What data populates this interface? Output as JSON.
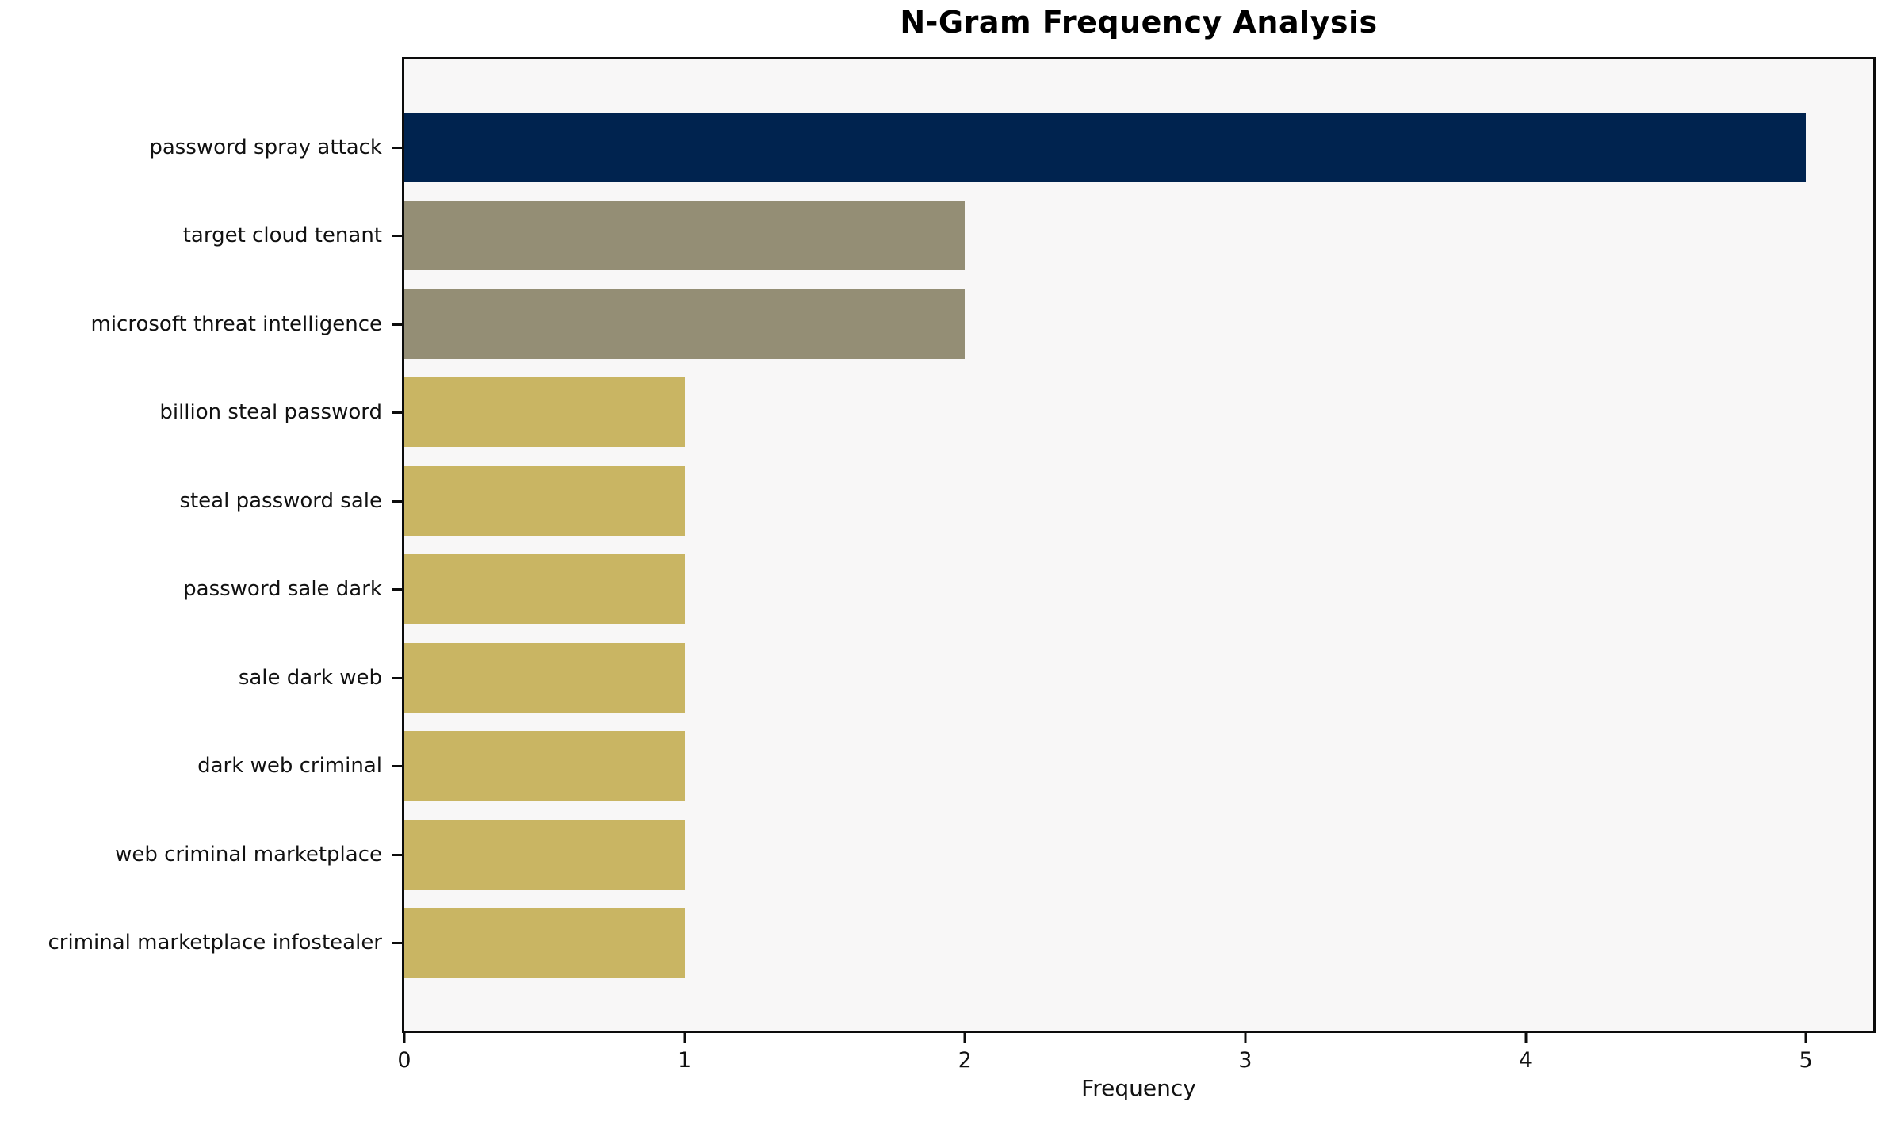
{
  "chart_data": {
    "type": "bar",
    "orientation": "horizontal",
    "title": "N-Gram Frequency Analysis",
    "xlabel": "Frequency",
    "ylabel": "",
    "categories": [
      "password spray attack",
      "target cloud tenant",
      "microsoft threat intelligence",
      "billion steal password",
      "steal password sale",
      "password sale dark",
      "sale dark web",
      "dark web criminal",
      "web criminal marketplace",
      "criminal marketplace infostealer"
    ],
    "values": [
      5,
      2,
      2,
      1,
      1,
      1,
      1,
      1,
      1,
      1
    ],
    "bar_colors": [
      "#00234F",
      "#948E75",
      "#948E75",
      "#C9B563",
      "#C9B563",
      "#C9B563",
      "#C9B563",
      "#C9B563",
      "#C9B563",
      "#C9B563"
    ],
    "xticks": [
      0,
      1,
      2,
      3,
      4,
      5
    ],
    "xlim": [
      0,
      5.24
    ],
    "grid": false,
    "legend": null,
    "plot_background": "#f8f7f7",
    "figure_background": "#ffffff",
    "axis_color": "#0c0c0c"
  }
}
